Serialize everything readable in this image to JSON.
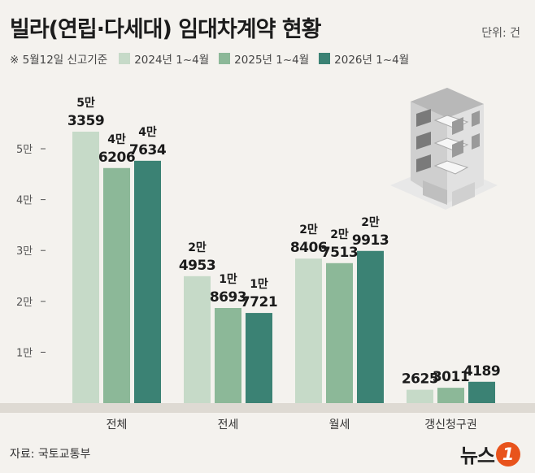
{
  "header": {
    "title": "빌라(연립·다세대) 임대차계약 현황",
    "unit": "단위: 건",
    "note": "※ 5월12일 신고기준"
  },
  "footer": {
    "source": "자료: 국토교통부",
    "logo_text": "뉴스",
    "logo_badge": "1"
  },
  "chart_data": {
    "type": "bar",
    "title": "빌라(연립·다세대) 임대차계약 현황",
    "unit": "건",
    "categories": [
      "전체",
      "전세",
      "월세",
      "갱신청구권"
    ],
    "series": [
      {
        "name": "2024년 1~4월",
        "color": "#c6dac8",
        "values": [
          53359,
          24953,
          28406,
          2625
        ],
        "labels": [
          [
            "5만",
            "3359"
          ],
          [
            "2만",
            "4953"
          ],
          [
            "2만",
            "8406"
          ],
          [
            "",
            "2625"
          ]
        ]
      },
      {
        "name": "2025년 1~4월",
        "color": "#8cb898",
        "values": [
          46206,
          18693,
          27513,
          3011
        ],
        "labels": [
          [
            "4만",
            "6206"
          ],
          [
            "1만",
            "8693"
          ],
          [
            "2만",
            "7513"
          ],
          [
            "",
            "3011"
          ]
        ]
      },
      {
        "name": "2026년 1~4월",
        "color": "#3b8274",
        "values": [
          47634,
          17721,
          29913,
          4189
        ],
        "labels": [
          [
            "4만",
            "7634"
          ],
          [
            "1만",
            "7721"
          ],
          [
            "2만",
            "9913"
          ],
          [
            "",
            "4189"
          ]
        ]
      }
    ],
    "y_ticks": [
      {
        "value": 10000,
        "label": "1만"
      },
      {
        "value": 20000,
        "label": "2만"
      },
      {
        "value": 30000,
        "label": "3만"
      },
      {
        "value": 40000,
        "label": "4만"
      },
      {
        "value": 50000,
        "label": "5만"
      }
    ],
    "ylim": [
      0,
      53359
    ],
    "legend_position": "top",
    "grid": false
  }
}
